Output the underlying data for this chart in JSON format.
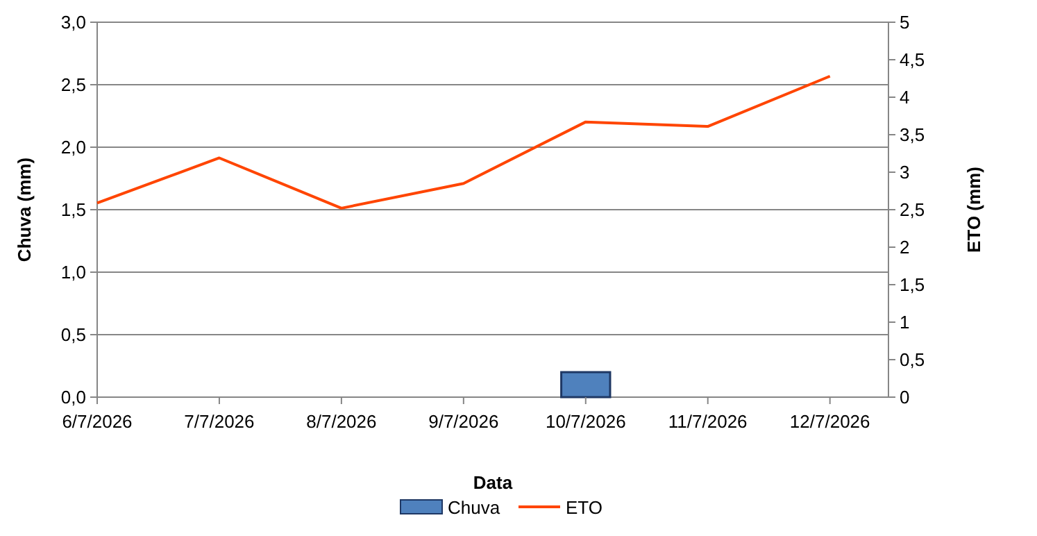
{
  "chart_data": {
    "type": "bar",
    "xlabel": "Data",
    "ylabel": "Chuva (mm)",
    "y2label": "ETO (mm)",
    "x": [
      "2026-07-06",
      "2026-07-07",
      "2026-07-08",
      "2026-07-09",
      "2026-07-10",
      "2026-07-11",
      "2026-07-12"
    ],
    "xlim": [
      "2026-07-06",
      "2026-07-12T11:30"
    ],
    "xticks": [
      {
        "value": "2026-07-06",
        "label": "6/7/2026"
      },
      {
        "value": "2026-07-07",
        "label": "7/7/2026"
      },
      {
        "value": "2026-07-08",
        "label": "8/7/2026"
      },
      {
        "value": "2026-07-09",
        "label": "9/7/2026"
      },
      {
        "value": "2026-07-10",
        "label": "10/7/2026"
      },
      {
        "value": "2026-07-11",
        "label": "11/7/2026"
      },
      {
        "value": "2026-07-12",
        "label": "12/7/2026"
      }
    ],
    "series": [
      {
        "name": "Chuva",
        "color": "#4f81bd",
        "values": [
          0,
          0,
          0,
          0,
          0.2,
          0,
          0
        ]
      },
      {
        "name": "ETO",
        "type": "line",
        "axis": "y2",
        "color": "#ff4500",
        "values": [
          2.59,
          3.19,
          2.52,
          2.85,
          3.67,
          3.61,
          4.28
        ]
      }
    ],
    "ylim": [
      0,
      3
    ],
    "yticks": [
      {
        "value": 0,
        "label": "0,0"
      },
      {
        "value": 0.5,
        "label": "0,5"
      },
      {
        "value": 1,
        "label": "1,0"
      },
      {
        "value": 1.5,
        "label": "1,5"
      },
      {
        "value": 2,
        "label": "2,0"
      },
      {
        "value": 2.5,
        "label": "2,5"
      },
      {
        "value": 3,
        "label": "3,0"
      }
    ],
    "y2lim": [
      0,
      5
    ],
    "y2ticks": [
      0,
      {
        "value": 0.5,
        "label": "0,5"
      },
      1,
      {
        "value": 1.5,
        "label": "1,5"
      },
      2,
      {
        "value": 2.5,
        "label": "2,5"
      },
      3,
      {
        "value": 3.5,
        "label": "3,5"
      },
      4,
      {
        "value": 4.5,
        "label": "4,5"
      },
      5
    ],
    "grid": "y",
    "legend": "bottom",
    "marker": "none",
    "line_style": "solid"
  }
}
